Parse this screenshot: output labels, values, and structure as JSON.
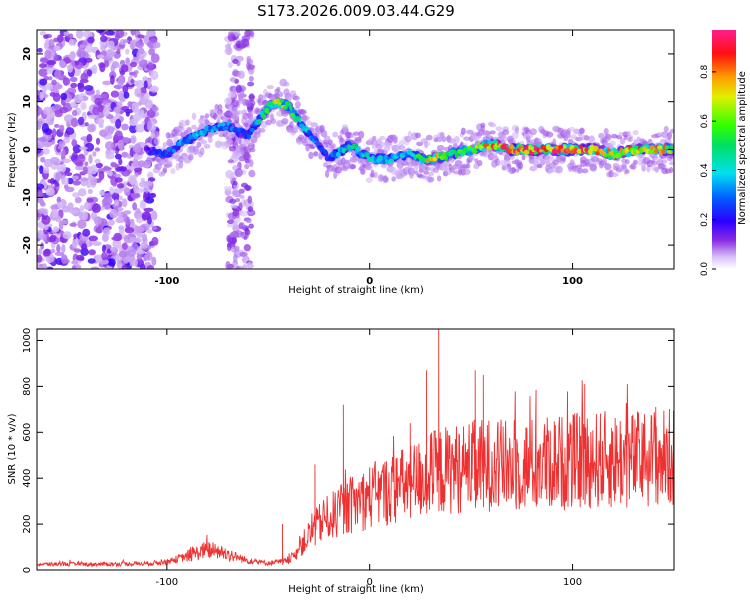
{
  "chart_data": [
    {
      "type": "heatmap",
      "title": "S173.2026.009.03.44.G29",
      "xlabel": "Height of straight line (km)",
      "ylabel": "Frequency (Hz)",
      "xlim": [
        -164,
        150
      ],
      "ylim": [
        -25,
        25
      ],
      "x_ticks": [
        -100,
        0,
        100
      ],
      "y_ticks": [
        -20,
        -10,
        0,
        10,
        20
      ],
      "colorbar": {
        "label": "Normalized spectral amplitude",
        "range": [
          0,
          0.97
        ],
        "ticks": [
          "0.0",
          "0.2",
          "0.4",
          "0.6",
          "0.8"
        ]
      },
      "ridge": {
        "x_km": [
          -110,
          -100,
          -90,
          -80,
          -70,
          -60,
          -50,
          -45,
          -40,
          -35,
          -30,
          -25,
          -20,
          -10,
          0,
          10,
          20,
          30,
          40,
          50,
          60,
          70,
          80,
          90,
          100,
          110,
          120,
          130,
          140,
          148
        ],
        "freq_hz": [
          0,
          -1,
          2,
          4,
          5,
          3,
          9,
          10,
          9,
          6,
          3,
          1,
          -2,
          1,
          -2,
          -2,
          -1,
          -2,
          -1,
          0,
          1,
          0,
          0,
          0,
          0,
          0,
          -1,
          0,
          0,
          0
        ],
        "amplitude": [
          0.2,
          0.28,
          0.35,
          0.38,
          0.32,
          0.28,
          0.55,
          0.75,
          0.6,
          0.45,
          0.35,
          0.25,
          0.3,
          0.45,
          0.4,
          0.42,
          0.38,
          0.75,
          0.55,
          0.55,
          0.8,
          0.9,
          0.85,
          0.85,
          0.88,
          0.85,
          0.7,
          0.8,
          0.8,
          0.7
        ]
      },
      "noise_region_x_km": [
        -164,
        -105
      ]
    },
    {
      "type": "line",
      "xlabel": "Height of straight line (km)",
      "ylabel": "SNR (10 * v/v)",
      "xlim": [
        -164,
        150
      ],
      "ylim": [
        0,
        1050
      ],
      "x_ticks": [
        -100,
        0,
        100
      ],
      "y_ticks": [
        0,
        200,
        400,
        600,
        800,
        1000
      ],
      "series": [
        {
          "name": "SNR",
          "color": "#ee3030",
          "x_km": [
            -164,
            -150,
            -130,
            -110,
            -100,
            -90,
            -80,
            -70,
            -60,
            -50,
            -40,
            -35,
            -30,
            -25,
            -20,
            -15,
            -10,
            -5,
            0,
            10,
            20,
            30,
            40,
            50,
            60,
            70,
            80,
            90,
            100,
            110,
            120,
            130,
            140,
            150
          ],
          "values": [
            25,
            25,
            25,
            28,
            35,
            60,
            90,
            70,
            40,
            30,
            40,
            90,
            150,
            200,
            230,
            250,
            280,
            300,
            320,
            350,
            380,
            420,
            440,
            450,
            460,
            450,
            460,
            470,
            470,
            480,
            480,
            480,
            490,
            490
          ],
          "peaks": [
            {
              "x": -79,
              "value": 110
            },
            {
              "x": -43,
              "value": 200
            },
            {
              "x": -27,
              "value": 460
            },
            {
              "x": -13,
              "value": 720
            },
            {
              "x": 20,
              "value": 640
            },
            {
              "x": 34,
              "value": 1050
            },
            {
              "x": 28,
              "value": 870
            },
            {
              "x": 52,
              "value": 870
            },
            {
              "x": 56,
              "value": 850
            },
            {
              "x": 82,
              "value": 620
            },
            {
              "x": 106,
              "value": 810
            },
            {
              "x": 141,
              "value": 710
            }
          ]
        }
      ]
    }
  ]
}
